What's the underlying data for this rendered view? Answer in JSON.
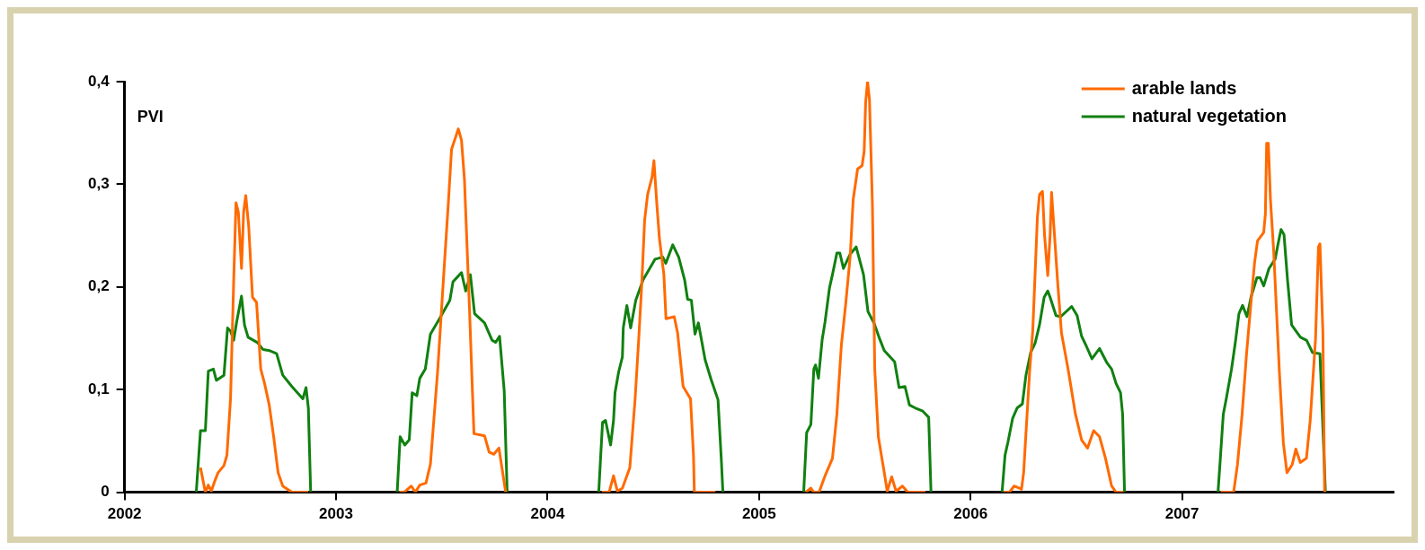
{
  "chart_data": {
    "type": "line",
    "ylabel": "PVI",
    "xlim": [
      2002,
      2008
    ],
    "xticks": [
      2002,
      2003,
      2004,
      2005,
      2006,
      2007
    ],
    "ylim": [
      0,
      0.4
    ],
    "yticks": [
      0,
      {
        "value": 0.1,
        "label": "0,1"
      },
      {
        "value": 0.2,
        "label": "0,2"
      },
      {
        "value": 0.3,
        "label": "0,3"
      },
      {
        "value": 0.4,
        "label": "0,4"
      }
    ],
    "legend": "top right",
    "marker": "none",
    "line_style": "solid",
    "series": [
      {
        "name": "arable lands",
        "color": "#ff6a00",
        "x": [
          2002.359,
          2002.382,
          2002.396,
          2002.41,
          2002.425,
          2002.442,
          2002.47,
          2002.484,
          2002.501,
          2002.516,
          2002.527,
          2002.538,
          2002.553,
          2002.563,
          2002.573,
          2002.587,
          2002.605,
          2002.624,
          2002.644,
          2002.662,
          2002.684,
          2002.705,
          2002.726,
          2002.748,
          2002.791,
          2002.84,
          2002.869,
          2003.1,
          2003.299,
          2003.322,
          2003.356,
          2003.375,
          2003.396,
          2003.425,
          2003.446,
          2003.481,
          2003.51,
          2003.531,
          2003.546,
          2003.567,
          2003.578,
          2003.593,
          2003.607,
          2003.631,
          2003.652,
          2003.702,
          2003.724,
          2003.746,
          2003.77,
          2003.802,
          2004.0,
          2004.256,
          2004.291,
          2004.312,
          2004.33,
          2004.354,
          2004.389,
          2004.414,
          2004.431,
          2004.445,
          2004.459,
          2004.473,
          2004.494,
          2004.503,
          2004.517,
          2004.529,
          2004.55,
          2004.56,
          2004.599,
          2004.615,
          2004.641,
          2004.676,
          2004.69,
          2004.694,
          2004.794,
          2005.0,
          2005.221,
          2005.245,
          2005.259,
          2005.284,
          2005.312,
          2005.347,
          2005.368,
          2005.389,
          2005.41,
          2005.431,
          2005.445,
          2005.466,
          2005.487,
          2005.497,
          2005.504,
          2005.513,
          2005.522,
          2005.536,
          2005.547,
          2005.564,
          2005.592,
          2005.606,
          2005.627,
          2005.648,
          2005.678,
          2005.703,
          2005.787,
          2006.0,
          2006.156,
          2006.184,
          2006.206,
          2006.241,
          2006.251,
          2006.265,
          2006.279,
          2006.294,
          2006.305,
          2006.316,
          2006.326,
          2006.34,
          2006.35,
          2006.365,
          2006.376,
          2006.383,
          2006.397,
          2006.411,
          2006.43,
          2006.461,
          2006.496,
          2006.525,
          2006.553,
          2006.582,
          2006.61,
          2006.638,
          2006.667,
          2006.688,
          2006.723,
          2007.0,
          2007.182,
          2007.244,
          2007.262,
          2007.284,
          2007.305,
          2007.323,
          2007.343,
          2007.357,
          2007.386,
          2007.394,
          2007.4,
          2007.408,
          2007.418,
          2007.433,
          2007.461,
          2007.479,
          2007.496,
          2007.521,
          2007.538,
          2007.559,
          2007.588,
          2007.606,
          2007.631,
          2007.645,
          2007.652,
          2007.666,
          2007.674
        ],
        "values": [
          0.024,
          0,
          0.007,
          0.001,
          0.01,
          0.019,
          0.026,
          0.036,
          0.091,
          0.206,
          0.282,
          0.273,
          0.218,
          0.273,
          0.289,
          0.259,
          0.19,
          0.185,
          0.12,
          0.106,
          0.085,
          0.054,
          0.019,
          0.006,
          0,
          0,
          0,
          null,
          0,
          0,
          0.006,
          0,
          0.007,
          0.009,
          0.027,
          0.12,
          0.215,
          0.282,
          0.334,
          0.347,
          0.354,
          0.343,
          0.305,
          0.178,
          0.057,
          0.055,
          0.039,
          0.037,
          0.043,
          0,
          null,
          0,
          0,
          0.016,
          0.001,
          0.004,
          0.024,
          0.091,
          0.149,
          0.201,
          0.265,
          0.29,
          0.307,
          0.323,
          0.28,
          0.247,
          0.212,
          0.169,
          0.171,
          0.155,
          0.103,
          0.091,
          0.036,
          0,
          0,
          null,
          0,
          0.004,
          0,
          0,
          0.016,
          0.033,
          0.076,
          0.143,
          0.184,
          0.23,
          0.285,
          0.315,
          0.318,
          0.332,
          0.38,
          0.4,
          0.383,
          0.28,
          0.12,
          0.054,
          0.019,
          0.001,
          0.015,
          0.001,
          0.006,
          0,
          0,
          null,
          0,
          0,
          0.006,
          0.003,
          0.019,
          0.068,
          0.117,
          0.157,
          0.212,
          0.268,
          0.29,
          0.293,
          0.25,
          0.211,
          0.25,
          0.292,
          0.25,
          0.207,
          0.155,
          0.12,
          0.076,
          0.051,
          0.043,
          0.06,
          0.054,
          0.033,
          0.006,
          0,
          0,
          null,
          0,
          0,
          0.027,
          0.076,
          0.135,
          0.178,
          0.224,
          0.245,
          0.253,
          0.271,
          0.34,
          0.34,
          0.285,
          0.236,
          0.114,
          0.048,
          0.019,
          0.027,
          0.042,
          0.029,
          0.033,
          0.07,
          0.149,
          0.239,
          0.242,
          0.155,
          0
        ]
      },
      {
        "name": "natural vegetation",
        "color": "#108010",
        "x": [
          2002.339,
          2002.359,
          2002.382,
          2002.396,
          2002.42,
          2002.434,
          2002.47,
          2002.487,
          2002.501,
          2002.516,
          2002.53,
          2002.553,
          2002.567,
          2002.584,
          2002.627,
          2002.655,
          2002.684,
          2002.719,
          2002.748,
          2002.791,
          2002.843,
          2002.858,
          2002.869,
          2002.88,
          2003.1,
          2003.289,
          2003.303,
          2003.325,
          2003.346,
          2003.36,
          2003.382,
          2003.396,
          2003.422,
          2003.446,
          2003.489,
          2003.538,
          2003.553,
          2003.593,
          2003.613,
          2003.635,
          2003.655,
          2003.702,
          2003.738,
          2003.755,
          2003.773,
          2003.795,
          2003.809,
          2004.0,
          2004.242,
          2004.249,
          2004.26,
          2004.274,
          2004.298,
          2004.312,
          2004.319,
          2004.336,
          2004.354,
          2004.358,
          2004.375,
          2004.393,
          2004.417,
          2004.452,
          2004.508,
          2004.545,
          2004.559,
          2004.592,
          2004.62,
          2004.648,
          2004.662,
          2004.68,
          2004.697,
          2004.713,
          2004.745,
          2004.773,
          2004.806,
          2004.822,
          2004.829,
          2005.0,
          2005.211,
          2005.225,
          2005.245,
          2005.259,
          2005.267,
          2005.281,
          2005.298,
          2005.312,
          2005.333,
          2005.347,
          2005.368,
          2005.382,
          2005.399,
          2005.431,
          2005.459,
          2005.494,
          2005.515,
          2005.543,
          2005.571,
          2005.592,
          2005.641,
          2005.662,
          2005.69,
          2005.711,
          2005.739,
          2005.774,
          2005.802,
          2005.813,
          2006.0,
          2006.149,
          2006.163,
          2006.177,
          2006.199,
          2006.22,
          2006.245,
          2006.262,
          2006.284,
          2006.305,
          2006.326,
          2006.348,
          2006.365,
          2006.376,
          2006.404,
          2006.426,
          2006.478,
          2006.504,
          2006.525,
          2006.546,
          2006.574,
          2006.61,
          2006.645,
          2006.667,
          2006.688,
          2006.709,
          2006.719,
          2006.728,
          2007.0,
          2007.17,
          2007.181,
          2007.195,
          2007.209,
          2007.234,
          2007.252,
          2007.269,
          2007.286,
          2007.307,
          2007.326,
          2007.354,
          2007.369,
          2007.386,
          2007.411,
          2007.44,
          2007.454,
          2007.468,
          2007.482,
          2007.499,
          2007.518,
          2007.546,
          2007.56,
          2007.589,
          2007.617,
          2007.652,
          2007.678
        ],
        "values": [
          0,
          0.06,
          0.06,
          0.118,
          0.12,
          0.109,
          0.114,
          0.16,
          0.157,
          0.148,
          0.166,
          0.191,
          0.163,
          0.151,
          0.146,
          0.139,
          0.138,
          0.135,
          0.114,
          0.103,
          0.091,
          0.102,
          0.082,
          0,
          null,
          0,
          0.054,
          0.046,
          0.051,
          0.097,
          0.094,
          0.111,
          0.12,
          0.154,
          0.169,
          0.187,
          0.205,
          0.214,
          0.196,
          0.212,
          0.174,
          0.165,
          0.148,
          0.146,
          0.152,
          0.099,
          0,
          null,
          0,
          0.027,
          0.068,
          0.07,
          0.046,
          0.07,
          0.097,
          0.117,
          0.132,
          0.16,
          0.182,
          0.16,
          0.187,
          0.207,
          0.227,
          0.229,
          0.223,
          0.241,
          0.229,
          0.207,
          0.188,
          0.187,
          0.154,
          0.165,
          0.129,
          0.11,
          0.09,
          0.03,
          0,
          null,
          0,
          0.058,
          0.066,
          0.12,
          0.124,
          0.111,
          0.148,
          0.166,
          0.199,
          0.212,
          0.233,
          0.233,
          0.218,
          0.232,
          0.239,
          0.212,
          0.176,
          0.165,
          0.149,
          0.138,
          0.127,
          0.102,
          0.103,
          0.085,
          0.082,
          0.079,
          0.073,
          0,
          null,
          0,
          0.036,
          0.049,
          0.072,
          0.082,
          0.086,
          0.114,
          0.136,
          0.145,
          0.163,
          0.19,
          0.196,
          0.19,
          0.172,
          0.171,
          0.181,
          0.172,
          0.152,
          0.143,
          0.13,
          0.14,
          0.126,
          0.12,
          0.106,
          0.097,
          0.076,
          0,
          null,
          0,
          0.033,
          0.076,
          0.091,
          0.12,
          0.146,
          0.174,
          0.182,
          0.171,
          0.19,
          0.209,
          0.209,
          0.201,
          0.218,
          0.227,
          0.242,
          0.256,
          0.251,
          0.206,
          0.163,
          0.155,
          0.151,
          0.148,
          0.136,
          0.135,
          0
        ]
      }
    ]
  }
}
